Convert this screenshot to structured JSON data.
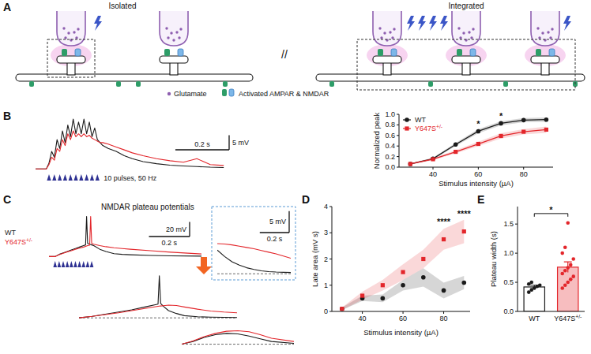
{
  "panel_letters": [
    "A",
    "B",
    "C",
    "D",
    "E"
  ],
  "diagram": {
    "isolated": "Isolated",
    "integrated": "Integrated",
    "separator": "//",
    "legend_items": [
      "Glutamate",
      "Activated AMPAR & NMDAR"
    ]
  },
  "chart_data": [
    {
      "type": "line",
      "x": [
        0,
        0.04,
        0.05,
        0.06,
        0.07,
        0.08,
        0.09,
        0.1,
        0.11,
        0.12,
        0.13,
        0.14,
        0.15,
        0.16,
        0.17,
        0.18,
        0.19,
        0.2,
        0.21,
        0.22,
        0.23,
        0.24,
        0.25,
        0.27,
        0.3,
        0.33,
        0.36,
        0.4,
        0.45,
        0.5,
        0.55,
        0.6,
        0.65,
        0.7
      ],
      "series": [
        {
          "color": "#1a1a1a",
          "values": [
            0,
            0,
            2,
            6,
            4,
            10,
            7,
            13,
            9,
            15,
            11,
            17,
            12,
            16,
            12,
            17,
            12,
            16,
            11,
            14,
            10,
            9,
            8,
            7,
            6,
            4.5,
            3.5,
            2.5,
            1.8,
            1.3,
            1.0,
            0.8,
            0.6,
            0.5
          ]
        },
        {
          "color": "#e3262b",
          "values": [
            0,
            0,
            1.5,
            4,
            3,
            7,
            6,
            10,
            8,
            12,
            10,
            13,
            11,
            12,
            11,
            12,
            11,
            11.5,
            10.5,
            10,
            9.5,
            9,
            9,
            8.5,
            7.5,
            6.5,
            5.5,
            4.5,
            3.5,
            2.8,
            2.3,
            3.5,
            1.5,
            1.2
          ]
        }
      ],
      "xlim": [
        0,
        0.72
      ],
      "ylim": [
        -1,
        20
      ],
      "xticks": [],
      "yticks": [],
      "tick_labels": false,
      "scale_bars": {
        "x": 0.2,
        "x_label": "0.2 s",
        "y": 5,
        "y_label": "5 mV"
      },
      "stimulus": {
        "label": "10 pulses, 50 Hz",
        "times": [
          0.05,
          0.07,
          0.09,
          0.11,
          0.13,
          0.15,
          0.17,
          0.19,
          0.21,
          0.23
        ]
      }
    },
    {
      "type": "line",
      "x_label": "Stimulus intensity (µA)",
      "y_label": "Normalized peak",
      "x": [
        30,
        40,
        50,
        60,
        70,
        80,
        90
      ],
      "series": [
        {
          "name": "WT",
          "color": "#1a1a1a",
          "marker": "circle",
          "values": [
            0.06,
            0.16,
            0.43,
            0.68,
            0.83,
            0.89,
            0.9
          ],
          "errors": [
            0.01,
            0.02,
            0.03,
            0.04,
            0.04,
            0.04,
            0.04
          ]
        },
        {
          "name": "Y647S+/-",
          "color": "#e3262b",
          "marker": "square",
          "values": [
            0.06,
            0.15,
            0.29,
            0.44,
            0.59,
            0.67,
            0.71
          ],
          "errors": [
            0.01,
            0.02,
            0.03,
            0.04,
            0.05,
            0.05,
            0.06
          ]
        }
      ],
      "xlim": [
        25,
        93
      ],
      "ylim": [
        0,
        1
      ],
      "xticks": [
        40,
        60,
        80
      ],
      "yticks": [
        {
          "value": 0,
          "label": "0.0"
        },
        0.2,
        0.4,
        0.6,
        0.8,
        {
          "value": 1,
          "label": "1.0"
        }
      ],
      "legend": "upper left",
      "annotations": [
        {
          "x": 60,
          "y": 0.76,
          "text": "*"
        },
        {
          "x": 70,
          "y": 0.91,
          "text": "*"
        }
      ]
    },
    {
      "type": "line",
      "title": "NMDAR plateau potentials",
      "x": [
        0,
        0.03,
        0.05,
        0.07,
        0.09,
        0.11,
        0.13,
        0.15,
        0.17,
        0.18,
        0.185,
        0.19,
        0.2,
        0.205,
        0.21,
        0.22,
        0.25,
        0.28,
        0.32,
        0.36,
        0.4,
        0.5,
        0.6,
        0.75
      ],
      "series": [
        {
          "name": "WT",
          "color": "#1a1a1a",
          "values": [
            0,
            0,
            3,
            5,
            7,
            9,
            11,
            13,
            15,
            16,
            55,
            18,
            17,
            16.5,
            16,
            15,
            10,
            7,
            4,
            3,
            2.5,
            1.5,
            1,
            0.5
          ]
        },
        {
          "name": "Y647S+/-",
          "color": "#e3262b",
          "values": [
            0,
            0,
            2.5,
            4.5,
            6.5,
            8,
            10,
            11.5,
            13,
            14,
            14.5,
            15,
            15.5,
            55,
            18,
            17,
            15,
            13.5,
            12,
            11,
            10,
            8,
            6,
            3.5
          ]
        }
      ],
      "xlim": [
        0,
        0.75
      ],
      "ylim": [
        -5,
        60
      ],
      "xticks": [],
      "yticks": [],
      "tick_labels": false,
      "scale_bars": {
        "x": 0.2,
        "x_label": "0.2 s",
        "y": 20,
        "y_label": "20 mV"
      },
      "stimulus": {
        "times": [
          0.03,
          0.05,
          0.07,
          0.09,
          0.11,
          0.13,
          0.15,
          0.17,
          0.19,
          0.21
        ]
      }
    },
    {
      "type": "line",
      "x": [
        0,
        0.05,
        0.1,
        0.15,
        0.2,
        0.25,
        0.3,
        0.35,
        0.4,
        0.45,
        0.5
      ],
      "series": [
        {
          "color": "#1a1a1a",
          "values": [
            5.5,
            4,
            2.8,
            2,
            1.4,
            1,
            0.7,
            0.5,
            0.4,
            0.35,
            0.3
          ]
        },
        {
          "color": "#e3262b",
          "values": [
            7,
            6.9,
            6.7,
            6.4,
            6.1,
            5.8,
            5.4,
            5,
            4.6,
            4.1,
            3.6
          ]
        }
      ],
      "xlim": [
        0,
        0.5
      ],
      "ylim": [
        -0.5,
        9
      ],
      "xticks": [],
      "yticks": [
        0
      ],
      "tick_labels": false,
      "scale_bars": {
        "x": 0.2,
        "x_label": "0.2 s",
        "y": 5,
        "y_label": "5 mV"
      }
    },
    {
      "type": "line",
      "x": [
        0,
        0.05,
        0.1,
        0.15,
        0.2,
        0.25,
        0.3,
        0.305,
        0.31,
        0.32,
        0.34,
        0.37,
        0.4,
        0.45,
        0.5,
        0.55,
        0.6
      ],
      "series": [
        {
          "color": "#1a1a1a",
          "values": [
            0,
            2,
            5,
            8,
            11,
            15,
            19,
            58,
            20,
            16,
            10,
            6,
            3,
            1.5,
            1,
            0.7,
            0.5
          ]
        },
        {
          "color": "#e3262b",
          "values": [
            0,
            2,
            4.5,
            7,
            10,
            13,
            16,
            16.2,
            16.4,
            16.8,
            17.5,
            17,
            15,
            12,
            9.5,
            8,
            7
          ]
        }
      ],
      "xlim": [
        0,
        0.6
      ],
      "ylim": [
        -2,
        60
      ],
      "xticks": [],
      "yticks": [
        0
      ],
      "tick_labels": false
    },
    {
      "type": "line",
      "x": [
        0,
        0.05,
        0.1,
        0.15,
        0.2,
        0.25,
        0.3,
        0.35,
        0.4,
        0.5
      ],
      "series": [
        {
          "color": "#1a1a1a",
          "values": [
            0,
            1,
            2.5,
            3.5,
            4,
            3.8,
            3,
            2,
            1,
            0.3
          ]
        },
        {
          "color": "#e3262b",
          "values": [
            0,
            1.2,
            2.8,
            4,
            4.8,
            5,
            4.6,
            3.5,
            2.2,
            1
          ]
        }
      ],
      "xlim": [
        0,
        0.5
      ],
      "ylim": [
        -1,
        6
      ],
      "xticks": [],
      "yticks": [
        0
      ],
      "tick_labels": false
    },
    {
      "type": "line",
      "x_label": "Stimulus intensity (µA)",
      "y_label": "Late area (mV s)",
      "x": [
        30,
        40,
        50,
        60,
        70,
        80,
        90
      ],
      "series": [
        {
          "color": "#1a1a1a",
          "marker": "circle",
          "line_style": "none",
          "values": [
            0.1,
            0.5,
            0.5,
            1.0,
            1.3,
            0.8,
            1.1
          ],
          "errors": [
            0.05,
            0.1,
            0.15,
            0.2,
            0.35,
            0.3,
            0.25
          ]
        },
        {
          "color": "#e3262b",
          "marker": "square",
          "line_style": "none",
          "values": [
            0.1,
            0.6,
            1.0,
            1.5,
            2.0,
            2.75,
            3.05
          ],
          "errors": [
            0.05,
            0.15,
            0.2,
            0.3,
            0.35,
            0.4,
            0.45
          ]
        }
      ],
      "xlim": [
        25,
        93
      ],
      "ylim": [
        0,
        4
      ],
      "xticks": [
        40,
        60,
        80
      ],
      "yticks": [
        0,
        1,
        2,
        3,
        4
      ],
      "annotations": [
        {
          "x": 80,
          "y": 3.3,
          "text": "****"
        },
        {
          "x": 90,
          "y": 3.6,
          "text": "****"
        }
      ]
    },
    {
      "type": "bar",
      "y_label": "Plateau width (s)",
      "categories": [
        "WT",
        "Y647S+/-"
      ],
      "values": [
        0.42,
        0.76
      ],
      "errors": [
        0.03,
        0.09
      ],
      "points": [
        [
          0.33,
          0.37,
          0.4,
          0.43,
          0.45,
          0.47,
          0.5
        ],
        [
          0.4,
          0.45,
          0.5,
          0.55,
          0.6,
          0.65,
          0.7,
          0.75,
          0.8,
          0.9,
          1.0,
          1.1,
          1.52
        ]
      ],
      "colors": [
        "#1a1a1a",
        "#e3262b"
      ],
      "ylim": [
        0,
        1.8
      ],
      "yticks": [
        {
          "value": 0,
          "label": "0.0"
        },
        0.5,
        {
          "value": 1,
          "label": "1.0"
        },
        1.5
      ],
      "annotations": [
        {
          "y": 1.68,
          "text": "*"
        }
      ]
    }
  ]
}
